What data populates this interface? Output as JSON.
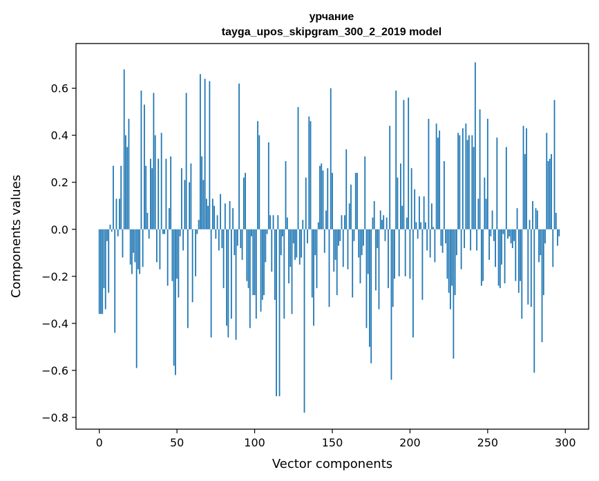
{
  "chart_data": {
    "type": "bar",
    "title": "урчание",
    "subtitle": "tayga_upos_skipgram_300_2_2019 model",
    "xlabel": "Vector components",
    "ylabel": "Components values",
    "xlim": [
      -15,
      315
    ],
    "ylim": [
      -0.85,
      0.79
    ],
    "xticks": [
      0,
      50,
      100,
      150,
      200,
      250,
      300
    ],
    "xtick_labels": [
      "0",
      "50",
      "100",
      "150",
      "200",
      "250",
      "300"
    ],
    "yticks": [
      -0.8,
      -0.6,
      -0.4,
      -0.2,
      0.0,
      0.2,
      0.4,
      0.6
    ],
    "ytick_labels": [
      "−0.8",
      "−0.6",
      "−0.4",
      "−0.2",
      "0.0",
      "0.2",
      "0.4",
      "0.6"
    ],
    "bar_color": "#1f77b4",
    "grid": false,
    "values": [
      -0.36,
      -0.36,
      -0.36,
      -0.25,
      -0.34,
      -0.05,
      -0.27,
      0.02,
      -0.01,
      0.27,
      -0.44,
      0.13,
      -0.03,
      0.13,
      0.27,
      -0.12,
      0.68,
      0.4,
      0.35,
      0.47,
      -0.15,
      -0.19,
      -0.1,
      -0.14,
      -0.59,
      -0.17,
      -0.19,
      0.59,
      -0.16,
      0.53,
      0.27,
      0.07,
      -0.04,
      0.3,
      0.26,
      0.58,
      0.4,
      -0.14,
      0.3,
      -0.17,
      0.41,
      -0.02,
      -0.02,
      0.3,
      -0.24,
      0.09,
      0.31,
      -0.22,
      -0.58,
      -0.62,
      -0.21,
      -0.29,
      -0.03,
      0.26,
      -0.09,
      0.21,
      0.58,
      -0.42,
      0.2,
      0.28,
      -0.31,
      0.0,
      -0.2,
      -0.02,
      0.04,
      0.66,
      0.31,
      0.21,
      0.64,
      0.13,
      0.1,
      0.63,
      -0.46,
      0.13,
      0.1,
      -0.04,
      0.06,
      -0.09,
      0.15,
      -0.08,
      -0.25,
      0.11,
      -0.41,
      -0.46,
      0.12,
      -0.38,
      0.09,
      -0.11,
      -0.47,
      -0.07,
      0.62,
      -0.08,
      -0.13,
      0.22,
      0.24,
      -0.22,
      -0.25,
      -0.42,
      -0.03,
      -0.28,
      -0.28,
      -0.38,
      0.46,
      0.4,
      -0.35,
      -0.3,
      -0.28,
      -0.14,
      -0.02,
      0.37,
      0.06,
      -0.18,
      0.06,
      -0.3,
      -0.71,
      0.06,
      -0.71,
      -0.11,
      -0.03,
      -0.38,
      0.29,
      0.05,
      -0.23,
      -0.16,
      -0.36,
      -0.06,
      -0.13,
      -0.12,
      0.52,
      -0.15,
      -0.12,
      0.04,
      -0.78,
      0.22,
      -0.06,
      0.48,
      0.46,
      -0.29,
      -0.41,
      -0.11,
      -0.25,
      0.03,
      0.27,
      0.28,
      0.25,
      -0.1,
      0.08,
      0.26,
      -0.33,
      0.6,
      0.24,
      -0.18,
      -0.13,
      -0.28,
      -0.07,
      -0.05,
      0.06,
      -0.16,
      0.06,
      0.34,
      -0.17,
      0.11,
      0.19,
      -0.29,
      -0.05,
      0.24,
      0.24,
      -0.12,
      -0.23,
      -0.11,
      -0.07,
      0.31,
      -0.42,
      -0.19,
      -0.5,
      -0.57,
      0.05,
      0.12,
      -0.26,
      -0.08,
      -0.34,
      0.08,
      0.04,
      0.06,
      -0.05,
      0.05,
      -0.25,
      0.44,
      -0.64,
      -0.33,
      -0.21,
      0.59,
      0.22,
      -0.2,
      0.28,
      0.1,
      0.55,
      -0.2,
      0.05,
      0.56,
      -0.21,
      0.26,
      -0.46,
      0.17,
      0.03,
      -0.04,
      0.14,
      0.03,
      -0.3,
      0.14,
      0.03,
      -0.09,
      0.47,
      -0.12,
      0.11,
      0.01,
      -0.14,
      0.45,
      0.39,
      0.42,
      -0.07,
      -0.1,
      0.29,
      -0.06,
      -0.21,
      -0.27,
      -0.34,
      -0.24,
      -0.55,
      -0.28,
      -0.11,
      0.41,
      0.4,
      -0.17,
      0.43,
      -0.08,
      0.45,
      0.38,
      0.4,
      -0.09,
      0.4,
      0.35,
      0.71,
      -0.09,
      0.13,
      0.51,
      -0.24,
      -0.22,
      0.22,
      0.13,
      0.47,
      -0.13,
      -0.03,
      0.08,
      -0.05,
      -0.16,
      0.39,
      -0.24,
      -0.25,
      -0.15,
      -0.02,
      -0.23,
      0.35,
      -0.04,
      -0.03,
      -0.06,
      -0.08,
      -0.05,
      -0.22,
      0.09,
      -0.27,
      -0.22,
      -0.38,
      0.44,
      0.32,
      0.43,
      -0.32,
      0.04,
      -0.33,
      0.12,
      -0.61,
      0.09,
      0.08,
      -0.14,
      -0.11,
      -0.48,
      -0.28,
      -0.06,
      0.41,
      0.29,
      0.3,
      0.32,
      -0.16,
      0.55,
      0.07,
      -0.07,
      -0.03
    ]
  }
}
